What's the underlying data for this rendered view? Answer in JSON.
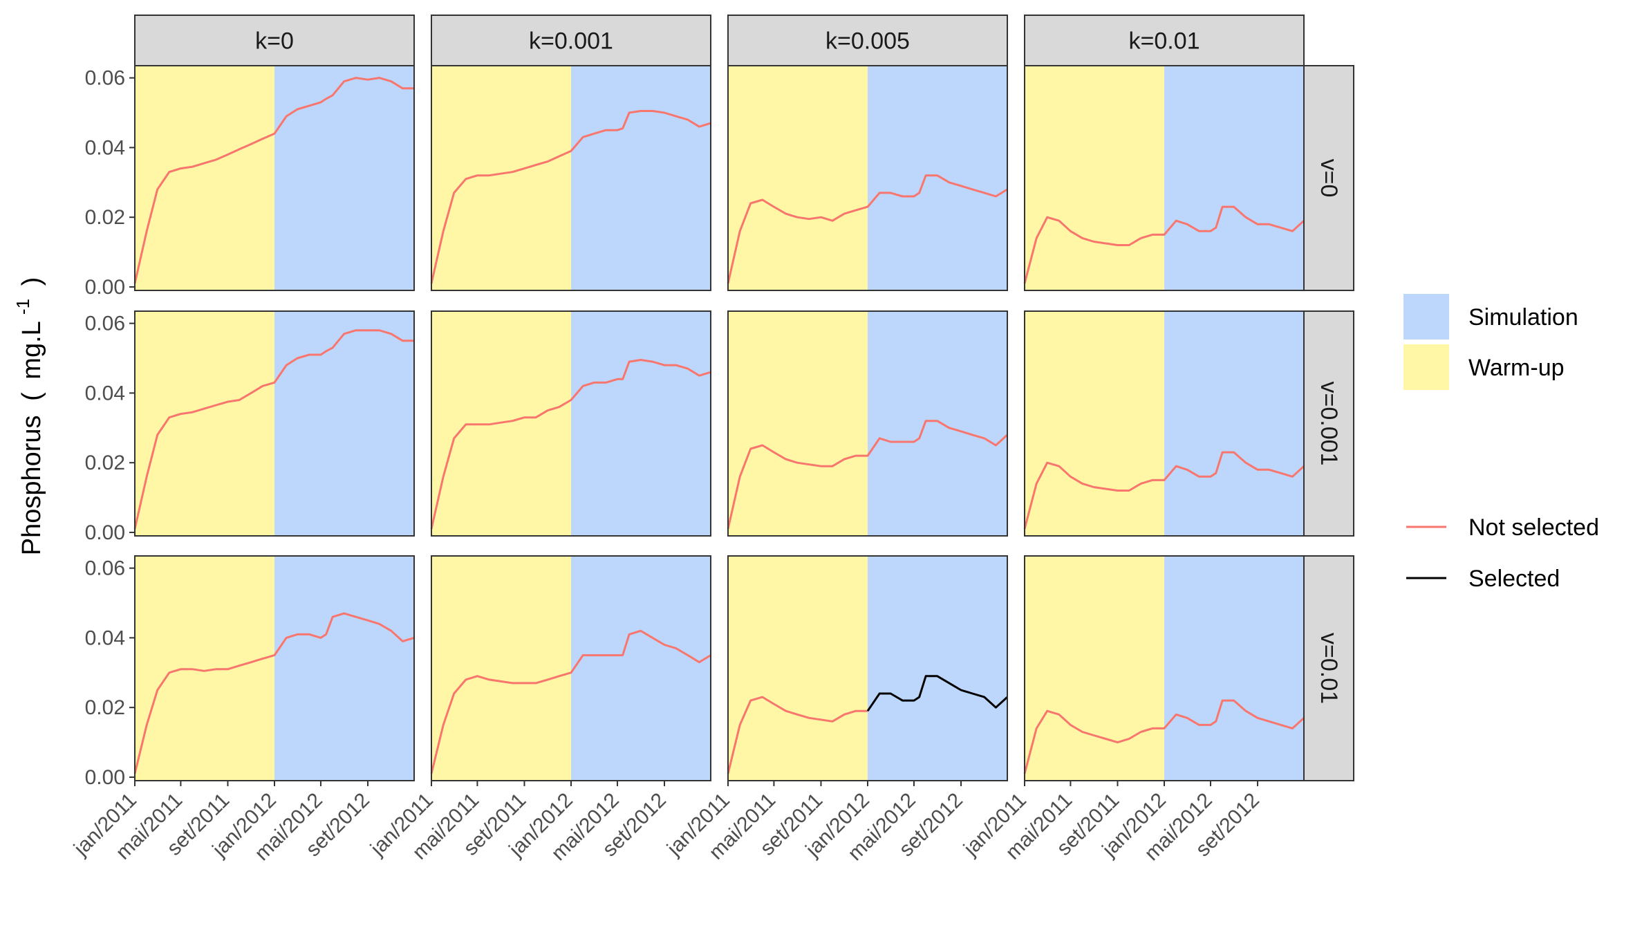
{
  "colors": {
    "warmup": "#FFF7A6",
    "simulation": "#BDD7FC",
    "not_selected": "#F8766D",
    "selected": "#000000",
    "strip": "#D9D9D9",
    "panel_border": "#333333"
  },
  "chart_data": {
    "type": "line",
    "facet_columns": [
      "k=0",
      "k=0.001",
      "k=0.005",
      "k=0.01"
    ],
    "facet_rows": [
      "v=0",
      "v=0.001",
      "v=0.01"
    ],
    "ylabel_main": "Phosphorus",
    "ylabel_unit": "mg.L",
    "ylabel_exponent": "-1",
    "ylabel_open": "(",
    "ylabel_close": ")",
    "y_ticks": [
      "0.00",
      "0.02",
      "0.04",
      "0.06"
    ],
    "y_tick_values": [
      0,
      0.02,
      0.04,
      0.06
    ],
    "ylim": [
      -0.001,
      0.0635
    ],
    "x_ticks": [
      "jan/2011",
      "mai/2011",
      "set/2011",
      "jan/2012",
      "mai/2012",
      "set/2012"
    ],
    "x_tick_dates": [
      "2011-01-01",
      "2011-05-01",
      "2011-09-01",
      "2012-01-01",
      "2012-05-01",
      "2012-09-01"
    ],
    "xlim": [
      "2011-01-01",
      "2012-12-31"
    ],
    "warmup_period": [
      "2011-01-01",
      "2012-01-01"
    ],
    "simulation_period": [
      "2012-01-01",
      "2012-12-31"
    ],
    "legend": {
      "fill": [
        {
          "label": "Simulation",
          "color": "#BDD7FC"
        },
        {
          "label": "Warm-up",
          "color": "#FFF7A6"
        }
      ],
      "lines": [
        {
          "label": "Not selected",
          "color": "#F8766D"
        },
        {
          "label": "Selected",
          "color": "#000000"
        }
      ]
    },
    "x_dates": [
      "2011-01-01",
      "2011-02-01",
      "2011-03-01",
      "2011-04-01",
      "2011-05-01",
      "2011-06-01",
      "2011-07-01",
      "2011-08-01",
      "2011-09-01",
      "2011-10-01",
      "2011-11-01",
      "2011-12-01",
      "2012-01-01",
      "2012-02-01",
      "2012-03-01",
      "2012-04-01",
      "2012-05-01",
      "2012-05-15",
      "2012-06-01",
      "2012-07-01",
      "2012-08-01",
      "2012-09-01",
      "2012-10-01",
      "2012-11-01",
      "2012-12-01",
      "2012-12-31"
    ],
    "series": [
      {
        "row": 0,
        "col": 0,
        "selected": false,
        "values": [
          0.001,
          0.016,
          0.028,
          0.033,
          0.034,
          0.0345,
          0.0355,
          0.0365,
          0.038,
          0.0395,
          0.041,
          0.0425,
          0.044,
          0.049,
          0.051,
          0.052,
          0.053,
          0.054,
          0.055,
          0.059,
          0.06,
          0.0595,
          0.06,
          0.059,
          0.057,
          0.057
        ]
      },
      {
        "row": 0,
        "col": 1,
        "selected": false,
        "values": [
          0.001,
          0.016,
          0.027,
          0.031,
          0.032,
          0.032,
          0.0325,
          0.033,
          0.034,
          0.035,
          0.036,
          0.0375,
          0.039,
          0.043,
          0.044,
          0.045,
          0.045,
          0.0455,
          0.05,
          0.0505,
          0.0505,
          0.05,
          0.049,
          0.048,
          0.046,
          0.047
        ]
      },
      {
        "row": 0,
        "col": 2,
        "selected": false,
        "values": [
          0.001,
          0.016,
          0.024,
          0.025,
          0.023,
          0.021,
          0.02,
          0.0195,
          0.02,
          0.019,
          0.021,
          0.022,
          0.023,
          0.027,
          0.027,
          0.026,
          0.026,
          0.027,
          0.032,
          0.032,
          0.03,
          0.029,
          0.028,
          0.027,
          0.026,
          0.028
        ]
      },
      {
        "row": 0,
        "col": 3,
        "selected": false,
        "values": [
          0.001,
          0.014,
          0.02,
          0.019,
          0.016,
          0.014,
          0.013,
          0.0125,
          0.012,
          0.012,
          0.014,
          0.015,
          0.015,
          0.019,
          0.018,
          0.016,
          0.016,
          0.017,
          0.023,
          0.023,
          0.02,
          0.018,
          0.018,
          0.017,
          0.016,
          0.019
        ]
      },
      {
        "row": 1,
        "col": 0,
        "selected": false,
        "values": [
          0.001,
          0.016,
          0.028,
          0.033,
          0.034,
          0.0345,
          0.0355,
          0.0365,
          0.0375,
          0.038,
          0.04,
          0.042,
          0.043,
          0.048,
          0.05,
          0.051,
          0.051,
          0.052,
          0.053,
          0.057,
          0.058,
          0.058,
          0.058,
          0.057,
          0.055,
          0.055
        ]
      },
      {
        "row": 1,
        "col": 1,
        "selected": false,
        "values": [
          0.001,
          0.016,
          0.027,
          0.031,
          0.031,
          0.031,
          0.0315,
          0.032,
          0.033,
          0.033,
          0.035,
          0.036,
          0.038,
          0.042,
          0.043,
          0.043,
          0.044,
          0.044,
          0.049,
          0.0495,
          0.049,
          0.048,
          0.048,
          0.047,
          0.045,
          0.046
        ]
      },
      {
        "row": 1,
        "col": 2,
        "selected": false,
        "values": [
          0.001,
          0.016,
          0.024,
          0.025,
          0.023,
          0.021,
          0.02,
          0.0195,
          0.019,
          0.019,
          0.021,
          0.022,
          0.022,
          0.027,
          0.026,
          0.026,
          0.026,
          0.027,
          0.032,
          0.032,
          0.03,
          0.029,
          0.028,
          0.027,
          0.025,
          0.028
        ]
      },
      {
        "row": 1,
        "col": 3,
        "selected": false,
        "values": [
          0.001,
          0.014,
          0.02,
          0.019,
          0.016,
          0.014,
          0.013,
          0.0125,
          0.012,
          0.012,
          0.014,
          0.015,
          0.015,
          0.019,
          0.018,
          0.016,
          0.016,
          0.017,
          0.023,
          0.023,
          0.02,
          0.018,
          0.018,
          0.017,
          0.016,
          0.019
        ]
      },
      {
        "row": 2,
        "col": 0,
        "selected": false,
        "values": [
          0.001,
          0.015,
          0.025,
          0.03,
          0.031,
          0.031,
          0.0305,
          0.031,
          0.031,
          0.032,
          0.033,
          0.034,
          0.035,
          0.04,
          0.041,
          0.041,
          0.04,
          0.041,
          0.046,
          0.047,
          0.046,
          0.045,
          0.044,
          0.042,
          0.039,
          0.04
        ]
      },
      {
        "row": 2,
        "col": 1,
        "selected": false,
        "values": [
          0.001,
          0.015,
          0.024,
          0.028,
          0.029,
          0.028,
          0.0275,
          0.027,
          0.027,
          0.027,
          0.028,
          0.029,
          0.03,
          0.035,
          0.035,
          0.035,
          0.035,
          0.035,
          0.041,
          0.042,
          0.04,
          0.038,
          0.037,
          0.035,
          0.033,
          0.035
        ]
      },
      {
        "row": 2,
        "col": 2,
        "selected": false,
        "values": [
          0.001,
          0.015,
          0.022,
          0.023,
          0.021,
          0.019,
          0.018,
          0.017,
          0.0165,
          0.016,
          0.018,
          0.019,
          0.019
        ]
      },
      {
        "row": 2,
        "col": 2,
        "selected": true,
        "values": [
          null,
          null,
          null,
          null,
          null,
          null,
          null,
          null,
          null,
          null,
          null,
          null,
          0.019,
          0.024,
          0.024,
          0.022,
          0.022,
          0.023,
          0.029,
          0.029,
          0.027,
          0.025,
          0.024,
          0.023,
          0.02,
          0.023
        ]
      },
      {
        "row": 2,
        "col": 3,
        "selected": false,
        "values": [
          0.001,
          0.014,
          0.019,
          0.018,
          0.015,
          0.013,
          0.012,
          0.011,
          0.01,
          0.011,
          0.013,
          0.014,
          0.014,
          0.018,
          0.017,
          0.015,
          0.015,
          0.016,
          0.022,
          0.022,
          0.019,
          0.017,
          0.016,
          0.015,
          0.014,
          0.017
        ]
      }
    ]
  }
}
